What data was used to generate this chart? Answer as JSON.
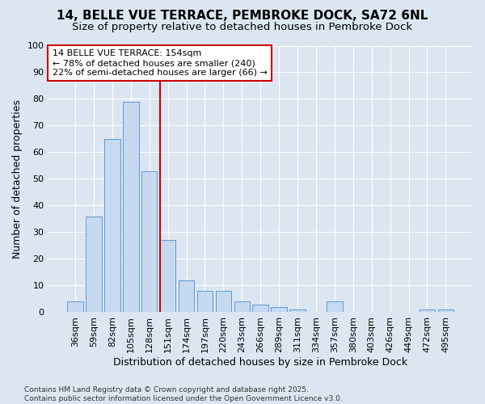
{
  "title": "14, BELLE VUE TERRACE, PEMBROKE DOCK, SA72 6NL",
  "subtitle": "Size of property relative to detached houses in Pembroke Dock",
  "xlabel": "Distribution of detached houses by size in Pembroke Dock",
  "ylabel": "Number of detached properties",
  "bar_labels": [
    "36sqm",
    "59sqm",
    "82sqm",
    "105sqm",
    "128sqm",
    "151sqm",
    "174sqm",
    "197sqm",
    "220sqm",
    "243sqm",
    "266sqm",
    "289sqm",
    "311sqm",
    "334sqm",
    "357sqm",
    "380sqm",
    "403sqm",
    "426sqm",
    "449sqm",
    "472sqm",
    "495sqm"
  ],
  "bar_values": [
    4,
    36,
    65,
    79,
    53,
    27,
    12,
    8,
    8,
    4,
    3,
    2,
    1,
    0,
    4,
    0,
    0,
    0,
    0,
    1,
    1
  ],
  "bar_color": "#c6d9f0",
  "bar_edge_color": "#5b9bd5",
  "vline_index": 5,
  "vline_color": "#cc0000",
  "annotation_lines": [
    "14 BELLE VUE TERRACE: 154sqm",
    "← 78% of detached houses are smaller (240)",
    "22% of semi-detached houses are larger (66) →"
  ],
  "annotation_box_color": "#ffffff",
  "annotation_box_edge": "#cc0000",
  "bg_color": "#dce6f1",
  "plot_bg_color": "#dce6f1",
  "grid_color": "#ffffff",
  "footnote": "Contains HM Land Registry data © Crown copyright and database right 2025.\nContains public sector information licensed under the Open Government Licence v3.0.",
  "ylim": [
    0,
    100
  ],
  "title_fontsize": 11,
  "subtitle_fontsize": 9.5,
  "axis_label_fontsize": 9,
  "tick_fontsize": 8,
  "annot_fontsize": 8,
  "footnote_fontsize": 6.5
}
